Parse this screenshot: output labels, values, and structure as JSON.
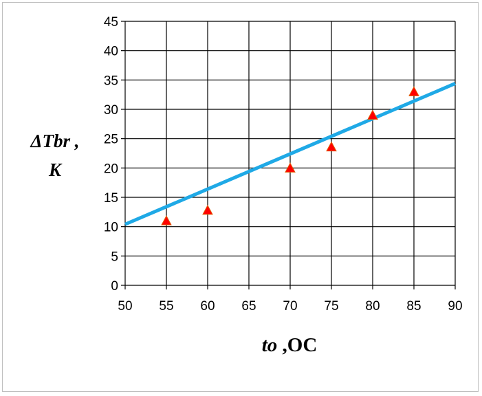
{
  "chart_data": {
    "type": "scatter",
    "xlabel": {
      "italic": "to",
      "rest": " ,OC"
    },
    "ylabel": {
      "line1": "ΔTbr ,",
      "line2": "K"
    },
    "xlim": [
      50,
      90
    ],
    "ylim": [
      0,
      45
    ],
    "xticks": [
      50,
      55,
      60,
      65,
      70,
      75,
      80,
      85,
      90
    ],
    "yticks": [
      0,
      5,
      10,
      15,
      20,
      25,
      30,
      35,
      40,
      45
    ],
    "grid": true,
    "series": [
      {
        "kind": "points",
        "marker": "triangle",
        "color": "#ff0000",
        "x": [
          55,
          60,
          70,
          75,
          80,
          85
        ],
        "y": [
          11,
          12.8,
          20,
          23.6,
          29,
          33
        ]
      },
      {
        "kind": "trendline",
        "color": "#1fa9e6",
        "x": [
          50,
          90
        ],
        "y": [
          10.4,
          34.4
        ]
      }
    ]
  }
}
